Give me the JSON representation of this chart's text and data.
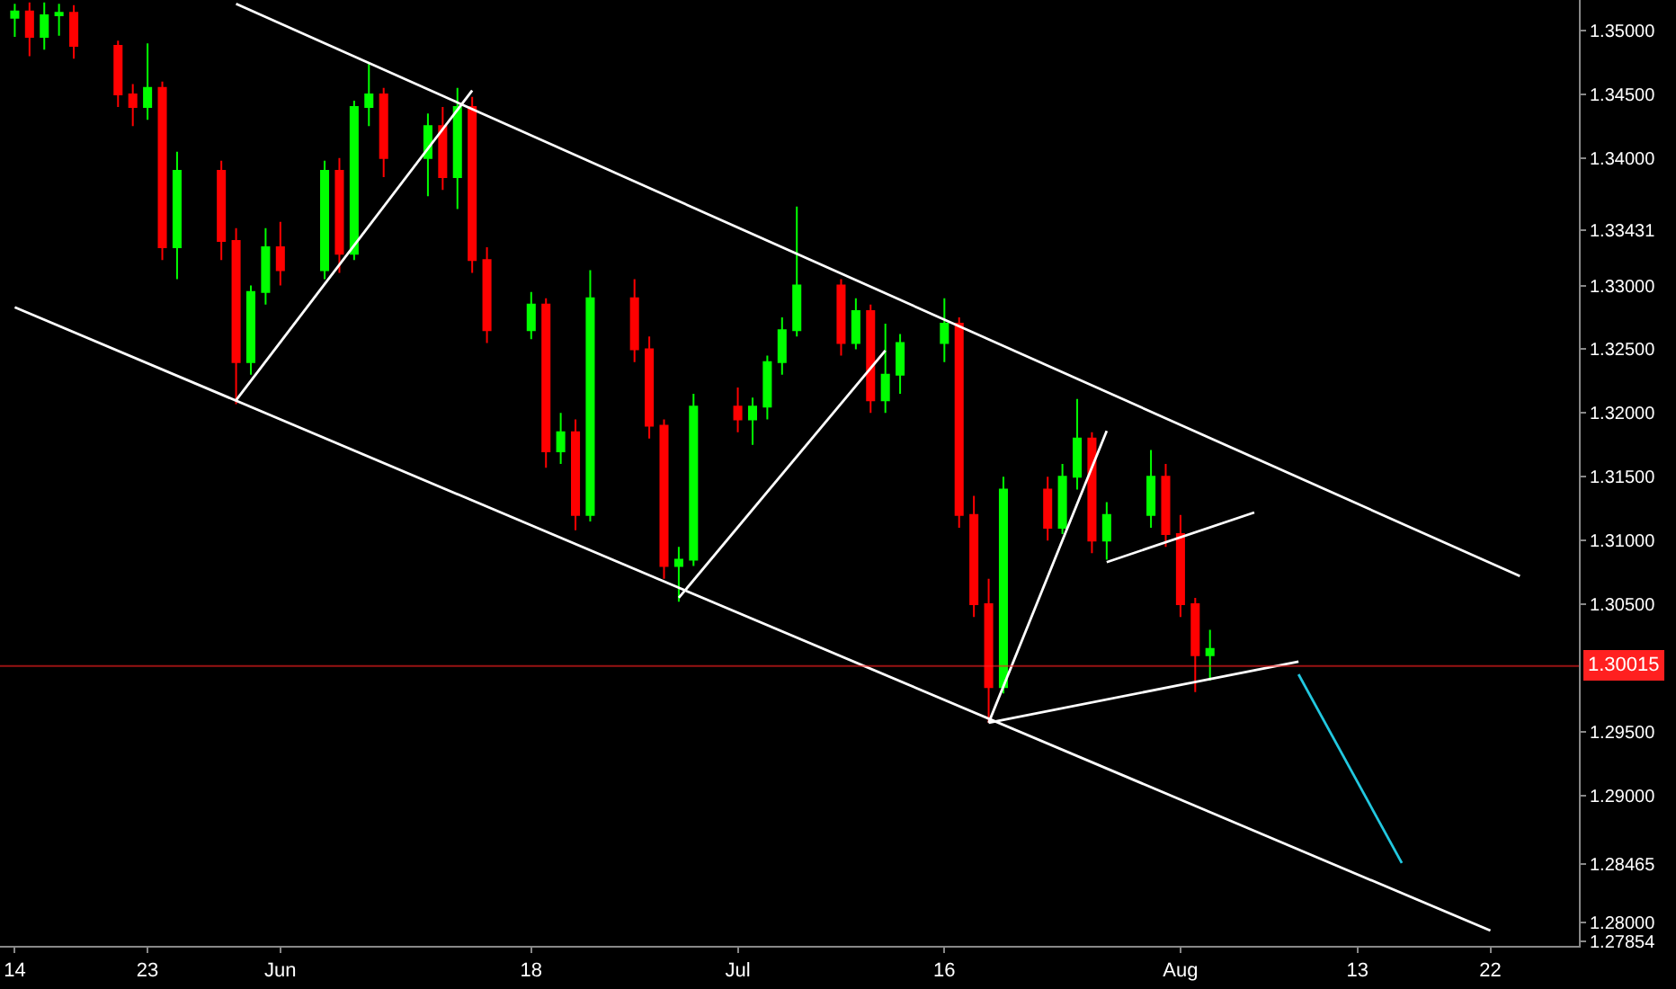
{
  "chart_data": {
    "type": "candlestick",
    "x": [
      "--05-14",
      "--05-15",
      "--05-16",
      "--05-17",
      "--05-18",
      "--05-21",
      "--05-22",
      "--05-23",
      "--05-24",
      "--05-25",
      "--05-28",
      "--05-29",
      "--05-30",
      "--05-31",
      "--06-01",
      "--06-04",
      "--06-05",
      "--06-06",
      "--06-07",
      "--06-08",
      "--06-11",
      "--06-12",
      "--06-13",
      "--06-14",
      "--06-15",
      "--06-18",
      "--06-19",
      "--06-20",
      "--06-21",
      "--06-22",
      "--06-25",
      "--06-26",
      "--06-27",
      "--06-28",
      "--06-29",
      "--07-02",
      "--07-03",
      "--07-04",
      "--07-05",
      "--07-06",
      "--07-09",
      "--07-10",
      "--07-11",
      "--07-12",
      "--07-13",
      "--07-16",
      "--07-17",
      "--07-18",
      "--07-19",
      "--07-20",
      "--07-23",
      "--07-24",
      "--07-25",
      "--07-26",
      "--07-27",
      "--07-30",
      "--07-31",
      "--08-01",
      "--08-02",
      "--08-03"
    ],
    "ohlc": [
      [
        1.351,
        1.3521,
        1.3495,
        1.3515
      ],
      [
        1.3515,
        1.3522,
        1.348,
        1.3495
      ],
      [
        1.3495,
        1.3522,
        1.3485,
        1.3512
      ],
      [
        1.3512,
        1.3521,
        1.3496,
        1.3514
      ],
      [
        1.3514,
        1.352,
        1.3478,
        1.3488
      ],
      [
        1.3488,
        1.3492,
        1.344,
        1.345
      ],
      [
        1.345,
        1.3458,
        1.3425,
        1.344
      ],
      [
        1.344,
        1.349,
        1.343,
        1.3455
      ],
      [
        1.3455,
        1.346,
        1.332,
        1.333
      ],
      [
        1.333,
        1.3405,
        1.3305,
        1.339
      ],
      [
        1.339,
        1.3398,
        1.332,
        1.3335
      ],
      [
        1.3335,
        1.3345,
        1.3207,
        1.324
      ],
      [
        1.324,
        1.33,
        1.323,
        1.3295
      ],
      [
        1.3295,
        1.3345,
        1.3285,
        1.333
      ],
      [
        1.333,
        1.335,
        1.33,
        1.3312
      ],
      [
        1.3312,
        1.3398,
        1.3305,
        1.339
      ],
      [
        1.339,
        1.34,
        1.331,
        1.3325
      ],
      [
        1.3325,
        1.3445,
        1.332,
        1.344
      ],
      [
        1.344,
        1.3475,
        1.3425,
        1.345
      ],
      [
        1.345,
        1.3455,
        1.3385,
        1.34
      ],
      [
        1.34,
        1.3435,
        1.337,
        1.3425
      ],
      [
        1.3425,
        1.344,
        1.3375,
        1.3385
      ],
      [
        1.3385,
        1.3455,
        1.336,
        1.344
      ],
      [
        1.344,
        1.3448,
        1.331,
        1.332
      ],
      [
        1.332,
        1.333,
        1.3255,
        1.3265
      ],
      [
        1.3265,
        1.3295,
        1.3258,
        1.3285
      ],
      [
        1.3285,
        1.329,
        1.3157,
        1.317
      ],
      [
        1.317,
        1.32,
        1.316,
        1.3185
      ],
      [
        1.3185,
        1.3195,
        1.3108,
        1.312
      ],
      [
        1.312,
        1.3312,
        1.3115,
        1.329
      ],
      [
        1.329,
        1.3305,
        1.324,
        1.325
      ],
      [
        1.325,
        1.326,
        1.318,
        1.319
      ],
      [
        1.319,
        1.3195,
        1.307,
        1.308
      ],
      [
        1.308,
        1.3095,
        1.3052,
        1.3085
      ],
      [
        1.3085,
        1.3215,
        1.308,
        1.3205
      ],
      [
        1.3205,
        1.322,
        1.3185,
        1.3195
      ],
      [
        1.3195,
        1.3212,
        1.3175,
        1.3205
      ],
      [
        1.3205,
        1.3245,
        1.3195,
        1.324
      ],
      [
        1.324,
        1.3275,
        1.323,
        1.3265
      ],
      [
        1.3265,
        1.3362,
        1.326,
        1.33
      ],
      [
        1.33,
        1.3305,
        1.3245,
        1.3255
      ],
      [
        1.3255,
        1.329,
        1.325,
        1.328
      ],
      [
        1.328,
        1.3285,
        1.32,
        1.321
      ],
      [
        1.321,
        1.327,
        1.32,
        1.323
      ],
      [
        1.323,
        1.3262,
        1.3215,
        1.3255
      ],
      [
        1.3255,
        1.329,
        1.324,
        1.327
      ],
      [
        1.327,
        1.3275,
        1.311,
        1.312
      ],
      [
        1.312,
        1.3135,
        1.304,
        1.305
      ],
      [
        1.305,
        1.307,
        1.2957,
        1.2985
      ],
      [
        1.2985,
        1.315,
        1.298,
        1.314
      ],
      [
        1.314,
        1.315,
        1.31,
        1.311
      ],
      [
        1.311,
        1.316,
        1.3105,
        1.315
      ],
      [
        1.315,
        1.3211,
        1.314,
        1.318
      ],
      [
        1.318,
        1.3185,
        1.309,
        1.31
      ],
      [
        1.31,
        1.313,
        1.3085,
        1.312
      ],
      [
        1.312,
        1.3171,
        1.311,
        1.315
      ],
      [
        1.315,
        1.316,
        1.3095,
        1.3105
      ],
      [
        1.3105,
        1.312,
        1.304,
        1.305
      ],
      [
        1.305,
        1.3055,
        1.2981,
        1.301
      ],
      [
        1.301,
        1.303,
        1.299,
        1.3015
      ]
    ],
    "series": [
      {
        "type": "line",
        "color": "#ffffff",
        "x": [
          "--05-29",
          "--08-24"
        ],
        "values": [
          1.3521,
          1.3072
        ]
      },
      {
        "type": "line",
        "color": "#ffffff",
        "x": [
          "--05-14",
          "--08-22"
        ],
        "values": [
          1.3283,
          1.2794
        ]
      },
      {
        "type": "line",
        "color": "#ffffff",
        "x": [
          "--05-29",
          "--06-14"
        ],
        "values": [
          1.321,
          1.3453
        ]
      },
      {
        "type": "line",
        "color": "#ffffff",
        "x": [
          "--06-28",
          "--07-12"
        ],
        "values": [
          1.3055,
          1.3249
        ]
      },
      {
        "type": "line",
        "color": "#ffffff",
        "x": [
          "--07-19",
          "--07-27"
        ],
        "values": [
          1.2957,
          1.3186
        ]
      },
      {
        "type": "line",
        "color": "#ffffff",
        "x": [
          "--07-19",
          "--08-09"
        ],
        "values": [
          1.2957,
          1.3005
        ]
      },
      {
        "type": "line",
        "color": "#ffffff",
        "x": [
          "--07-27",
          "--08-06"
        ],
        "values": [
          1.3083,
          1.3122
        ]
      },
      {
        "type": "line",
        "color": "#22c8e0",
        "x": [
          "--08-09",
          "--08-16"
        ],
        "values": [
          1.2995,
          1.2847
        ]
      }
    ],
    "xlim": [
      "--05-13",
      "--08-28"
    ],
    "xticks": [
      {
        "value": "--05-14",
        "label": "14"
      },
      {
        "value": "--05-23",
        "label": "23"
      },
      {
        "value": "--06-01",
        "label": "Jun"
      },
      {
        "value": "--06-18",
        "label": "18"
      },
      {
        "value": "--07-02",
        "label": "Jul"
      },
      {
        "value": "--07-16",
        "label": "16"
      },
      {
        "value": "--08-01",
        "label": "Aug"
      },
      {
        "value": "--08-13",
        "label": "13"
      },
      {
        "value": "--08-22",
        "label": "22"
      }
    ],
    "ylim": [
      1.2782,
      1.3524
    ],
    "yticks": [
      {
        "value": 1.35,
        "label": "1.35000"
      },
      {
        "value": 1.345,
        "label": "1.34500"
      },
      {
        "value": 1.34,
        "label": "1.34000"
      },
      {
        "value": 1.33431,
        "label": "1.33431"
      },
      {
        "value": 1.33,
        "label": "1.33000"
      },
      {
        "value": 1.325,
        "label": "1.32500"
      },
      {
        "value": 1.32,
        "label": "1.32000"
      },
      {
        "value": 1.315,
        "label": "1.31500"
      },
      {
        "value": 1.31,
        "label": "1.31000"
      },
      {
        "value": 1.305,
        "label": "1.30500"
      },
      {
        "value": 1.295,
        "label": "1.29500"
      },
      {
        "value": 1.29,
        "label": "1.29000"
      },
      {
        "value": 1.28465,
        "label": "1.28465"
      },
      {
        "value": 1.28,
        "label": "1.28000"
      },
      {
        "value": 1.27854,
        "label": "1.27854"
      }
    ],
    "ref_lines": [
      {
        "axis": "y",
        "value": 1.30015,
        "label": "1.30015",
        "color": "#ff2020"
      }
    ]
  }
}
